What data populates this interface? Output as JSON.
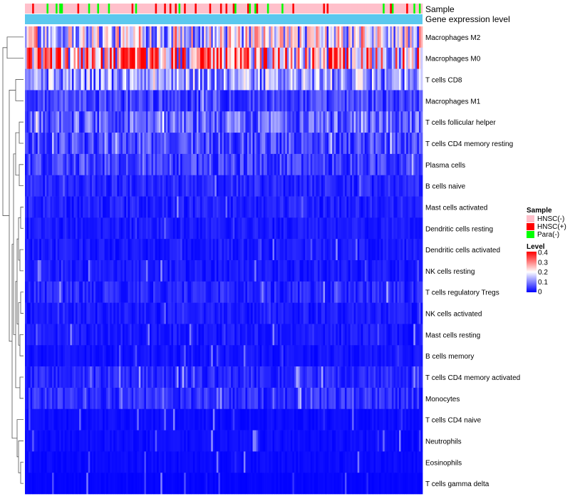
{
  "chart_data": {
    "type": "heatmap",
    "annotation_tracks": [
      {
        "name": "Sample"
      },
      {
        "name": "Gene expression level"
      }
    ],
    "row_labels": [
      "Macrophages M2",
      "Macrophages M0",
      "T cells CD8",
      "Macrophages M1",
      "T cells follicular helper",
      "T cells CD4 memory resting",
      "Plasma cells",
      "B cells naive",
      "Mast cells activated",
      "Dendritic cells resting",
      "Dendritic cells activated",
      "NK cells resting",
      "T cells regulatory  Tregs",
      "NK cells activated",
      "Mast cells resting",
      "B cells memory",
      "T cells CD4 memory activated",
      "Monocytes",
      "T cells CD4 naive",
      "Neutrophils",
      "Eosinophils",
      "T cells gamma delta"
    ],
    "row_mean_level": [
      0.17,
      0.26,
      0.12,
      0.05,
      0.08,
      0.06,
      0.05,
      0.03,
      0.025,
      0.02,
      0.02,
      0.02,
      0.03,
      0.02,
      0.02,
      0.015,
      0.03,
      0.035,
      0.01,
      0.01,
      0.008,
      0.004
    ],
    "num_columns": 220,
    "legend_sample": {
      "title": "Sample",
      "entries": [
        {
          "label": "HNSC(-)",
          "color": "#FFC0CB"
        },
        {
          "label": "HNSC(+)",
          "color": "#FF0000"
        },
        {
          "label": "Para(-)",
          "color": "#00FF00"
        }
      ]
    },
    "legend_level": {
      "title": "Level",
      "ticks": [
        "0.4",
        "0.3",
        "0.2",
        "0.1",
        "0"
      ],
      "colors": [
        "#0000FF",
        "#FFFFFF",
        "#FF0000"
      ],
      "range": [
        0,
        0.4
      ]
    },
    "gene_expression_color": "#5BC8EE"
  }
}
